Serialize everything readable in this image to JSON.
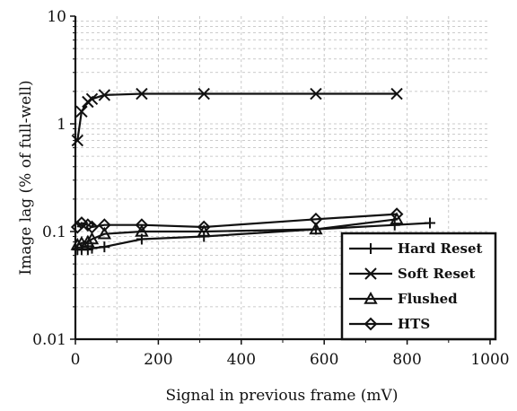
{
  "chart_data": {
    "type": "line",
    "title": "",
    "xlabel": "Signal in previous frame (mV)",
    "ylabel": "Image lag (% of full-well)",
    "xlim": [
      0,
      1000
    ],
    "ylim": [
      0.01,
      10
    ],
    "yscale": "log",
    "grid": true,
    "legend_position": "bottom-right",
    "x_ticks": [
      "0",
      "200",
      "400",
      "600",
      "800",
      "1000"
    ],
    "y_ticks": [
      "0.01",
      "0.1",
      "1",
      "10"
    ],
    "series": [
      {
        "name": "Hard Reset",
        "marker": "plus",
        "x": [
          5,
          15,
          30,
          40,
          70,
          160,
          310,
          580,
          770,
          855
        ],
        "y": [
          0.068,
          0.068,
          0.068,
          0.07,
          0.072,
          0.085,
          0.09,
          0.105,
          0.115,
          0.12
        ]
      },
      {
        "name": "Soft Reset",
        "marker": "cross",
        "x": [
          5,
          15,
          30,
          40,
          70,
          160,
          310,
          580,
          775
        ],
        "y": [
          0.7,
          1.3,
          1.6,
          1.7,
          1.85,
          1.9,
          1.9,
          1.9,
          1.9
        ]
      },
      {
        "name": "Flushed",
        "marker": "triangle",
        "x": [
          5,
          15,
          30,
          40,
          70,
          160,
          310,
          580,
          775
        ],
        "y": [
          0.075,
          0.078,
          0.08,
          0.085,
          0.095,
          0.1,
          0.1,
          0.105,
          0.13
        ]
      },
      {
        "name": "HTS",
        "marker": "diamond",
        "x": [
          5,
          15,
          30,
          40,
          70,
          160,
          310,
          580,
          775
        ],
        "y": [
          0.11,
          0.12,
          0.115,
          0.11,
          0.115,
          0.115,
          0.11,
          0.13,
          0.145
        ]
      }
    ]
  }
}
